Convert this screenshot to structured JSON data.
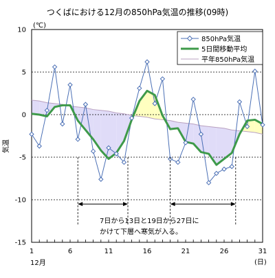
{
  "chart_data": {
    "type": "line",
    "title": "つくばにおける12月の850hPa気温の推移(09時)",
    "ylabel": "気温",
    "y_unit": "(℃)",
    "x_unit": "(日)",
    "x_month_label": "12月",
    "ylim": [
      -15,
      10
    ],
    "xlim": [
      1,
      31
    ],
    "y_ticks": [
      10,
      5,
      0,
      -5,
      -10,
      -15
    ],
    "x_ticks": [
      1,
      6,
      11,
      16,
      21,
      26,
      31
    ],
    "grid_y": true,
    "legend_position": "top-right",
    "x": [
      1,
      2,
      3,
      4,
      5,
      6,
      7,
      8,
      9,
      10,
      11,
      12,
      13,
      14,
      15,
      16,
      17,
      18,
      19,
      20,
      21,
      22,
      23,
      24,
      25,
      26,
      27,
      28,
      29,
      30,
      31
    ],
    "series": [
      {
        "name": "850hPa気温",
        "color": "#4a6fb5",
        "values": [
          -2.3,
          -3.7,
          0.5,
          5.6,
          -1.1,
          3.5,
          -2.9,
          1.2,
          -4.3,
          -7.6,
          -3.9,
          -4.6,
          -5.6,
          -0.4,
          3.1,
          6.2,
          1.3,
          4.2,
          -5.2,
          -5.6,
          -3.3,
          1.8,
          -2.3,
          -8.0,
          -6.9,
          -6.4,
          -6.1,
          1.5,
          -1.4,
          5.1,
          -1.2
        ]
      },
      {
        "name": "5日間移動平均",
        "color": "#3e9a4a",
        "values": [
          0.1,
          0.0,
          -0.2,
          0.9,
          1.1,
          1.1,
          -0.7,
          -1.8,
          -2.9,
          -4.2,
          -5.2,
          -4.5,
          -3.1,
          -0.6,
          1.6,
          2.8,
          2.3,
          -0.1,
          -1.7,
          -1.6,
          -3.2,
          -3.4,
          -4.4,
          -4.6,
          -5.9,
          -5.2,
          -4.5,
          -2.3,
          -0.7,
          -0.6,
          -1.1
        ]
      },
      {
        "name": "平年850hPa気温",
        "color": "#b8a0c0",
        "values": [
          1.7,
          1.6,
          1.4,
          1.3,
          1.2,
          1.0,
          0.9,
          0.8,
          0.6,
          0.5,
          0.4,
          0.2,
          0.1,
          -0.1,
          -0.2,
          -0.3,
          -0.5,
          -0.6,
          -0.7,
          -0.9,
          -1.0,
          -1.1,
          -1.3,
          -1.4,
          -1.5,
          -1.6,
          -1.8,
          -1.9,
          -2.0,
          -2.1,
          -2.3
        ]
      }
    ],
    "fill_colors": {
      "above": "#ffffc0",
      "below": "#e0dcf8"
    },
    "annotation": {
      "line1": "7日から13日と19日から27日に",
      "line2": "かけて下層へ寒気が入る。",
      "spans": [
        [
          7,
          13.5
        ],
        [
          19,
          27.5
        ]
      ],
      "arrow_y": -10.5
    }
  }
}
